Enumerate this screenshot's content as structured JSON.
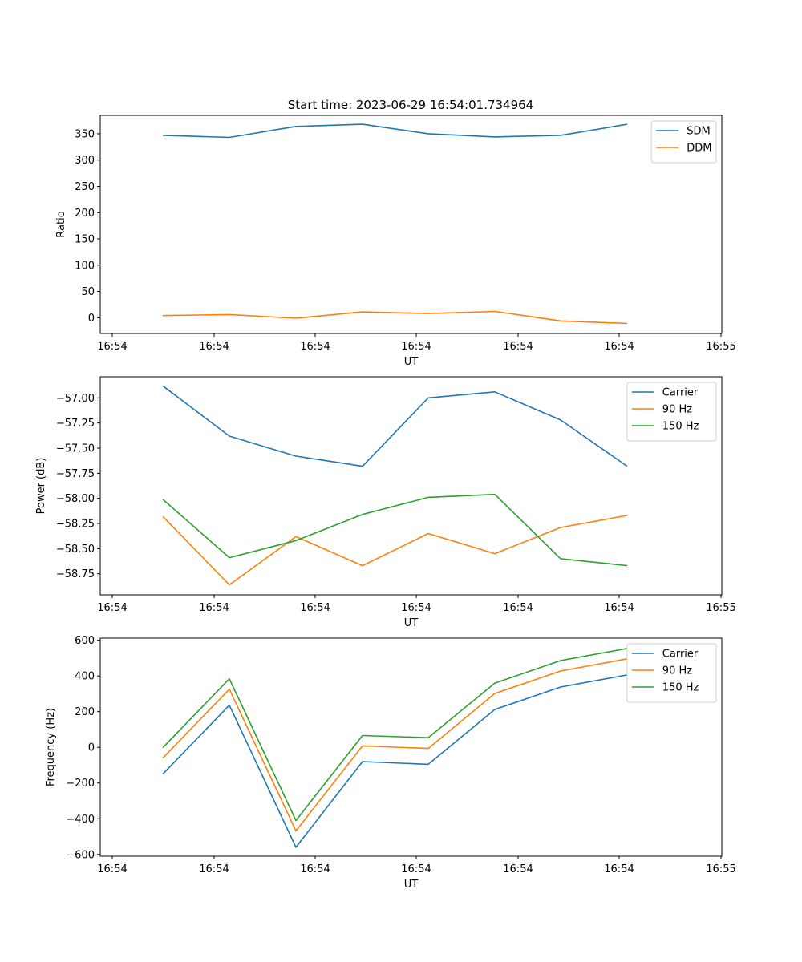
{
  "figure": {
    "title": "Start time: 2023-06-29 16:54:01.734964"
  },
  "chart_data": [
    {
      "type": "line",
      "title": "Start time: 2023-06-29 16:54:01.734964",
      "xlabel": "UT",
      "ylabel": "Ratio",
      "x_tick_labels": [
        "16:54",
        "16:54",
        "16:54",
        "16:54",
        "16:54",
        "16:54",
        "16:55"
      ],
      "y_ticks": [
        0,
        50,
        100,
        150,
        200,
        250,
        300,
        350
      ],
      "ylim": [
        -30,
        385
      ],
      "grid": false,
      "legend_position": "upper right",
      "series": [
        {
          "name": "SDM",
          "color": "#1f77b4",
          "values": [
            347,
            343,
            364,
            368,
            350,
            344,
            347,
            368
          ]
        },
        {
          "name": "DDM",
          "color": "#ff7f0e",
          "values": [
            4,
            6,
            -1,
            11,
            8,
            12,
            -6,
            -11
          ]
        }
      ]
    },
    {
      "type": "line",
      "xlabel": "UT",
      "ylabel": "Power (dB)",
      "x_tick_labels": [
        "16:54",
        "16:54",
        "16:54",
        "16:54",
        "16:54",
        "16:54",
        "16:55"
      ],
      "y_ticks": [
        -58.75,
        -58.5,
        -58.25,
        -58.0,
        -57.75,
        -57.5,
        -57.25,
        -57.0
      ],
      "y_tick_labels": [
        "−58.75",
        "−58.50",
        "−58.25",
        "−58.00",
        "−57.75",
        "−57.50",
        "−57.25",
        "−57.00"
      ],
      "ylim": [
        -58.96,
        -56.79
      ],
      "grid": false,
      "legend_position": "upper right",
      "series": [
        {
          "name": "Carrier",
          "color": "#1f77b4",
          "values": [
            -56.88,
            -57.38,
            -57.58,
            -57.68,
            -57.0,
            -56.94,
            -57.22,
            -57.68
          ]
        },
        {
          "name": "90 Hz",
          "color": "#ff7f0e",
          "values": [
            -58.18,
            -58.86,
            -58.38,
            -58.67,
            -58.35,
            -58.55,
            -58.29,
            -58.17
          ]
        },
        {
          "name": "150 Hz",
          "color": "#2ca02c",
          "values": [
            -58.01,
            -58.59,
            -58.42,
            -58.16,
            -57.99,
            -57.96,
            -58.6,
            -58.67
          ]
        }
      ]
    },
    {
      "type": "line",
      "xlabel": "UT",
      "ylabel": "Frequency (Hz)",
      "x_tick_labels": [
        "16:54",
        "16:54",
        "16:54",
        "16:54",
        "16:54",
        "16:54",
        "16:55"
      ],
      "y_ticks": [
        -600,
        -400,
        -200,
        0,
        200,
        400,
        600
      ],
      "y_tick_labels": [
        "−600",
        "−400",
        "−200",
        "0",
        "200",
        "400",
        "600"
      ],
      "ylim": [
        -610,
        612
      ],
      "grid": false,
      "legend_position": "upper right",
      "series": [
        {
          "name": "Carrier",
          "color": "#1f77b4",
          "values": [
            -150,
            236,
            -560,
            -80,
            -95,
            212,
            338,
            406
          ]
        },
        {
          "name": "90 Hz",
          "color": "#ff7f0e",
          "values": [
            -60,
            326,
            -468,
            8,
            -6,
            302,
            428,
            496
          ]
        },
        {
          "name": "150 Hz",
          "color": "#2ca02c",
          "values": [
            -2,
            384,
            -410,
            66,
            54,
            360,
            486,
            554
          ]
        }
      ]
    }
  ]
}
